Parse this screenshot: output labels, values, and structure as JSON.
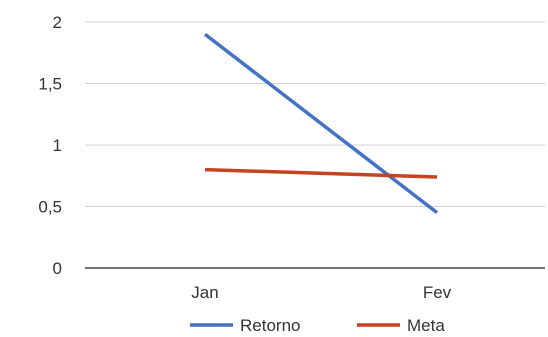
{
  "chart_data": {
    "type": "line",
    "categories": [
      "Jan",
      "Fev"
    ],
    "series": [
      {
        "name": "Retorno",
        "values": [
          1.9,
          0.45
        ],
        "color": "#4472C4"
      },
      {
        "name": "Meta",
        "values": [
          0.8,
          0.74
        ],
        "color": "#C5441F"
      }
    ],
    "y_ticks": [
      "0",
      "0,5",
      "1",
      "1,5",
      "2"
    ],
    "ylim": [
      0,
      2
    ],
    "grid": true,
    "legend": "bottom",
    "title": "",
    "xlabel": "",
    "ylabel": ""
  }
}
